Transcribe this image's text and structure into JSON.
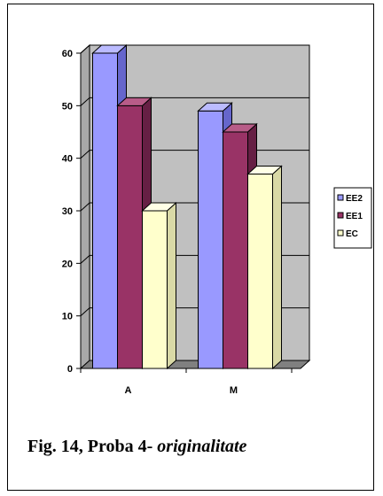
{
  "chart_data": {
    "type": "bar",
    "style": "3d-clustered-column",
    "categories": [
      "A",
      "M"
    ],
    "series": [
      {
        "name": "EE2",
        "values": [
          60,
          49
        ],
        "color": "#9999ff",
        "side": "#6666cc",
        "top": "#bbbbff"
      },
      {
        "name": "EE1",
        "values": [
          50,
          45
        ],
        "color": "#993366",
        "side": "#661f44",
        "top": "#b85c88"
      },
      {
        "name": "EC",
        "values": [
          30,
          37
        ],
        "color": "#ffffcc",
        "side": "#d9d9a6",
        "top": "#ffffe6"
      }
    ],
    "yticks": [
      0,
      10,
      20,
      30,
      40,
      50,
      60
    ],
    "ylim": [
      0,
      60
    ],
    "grid": true,
    "wall_color": "#c0c0c0",
    "legend_position": "right"
  },
  "caption": {
    "prefix": "Fig. 14, Proba 4- ",
    "italic": "originalitate"
  }
}
